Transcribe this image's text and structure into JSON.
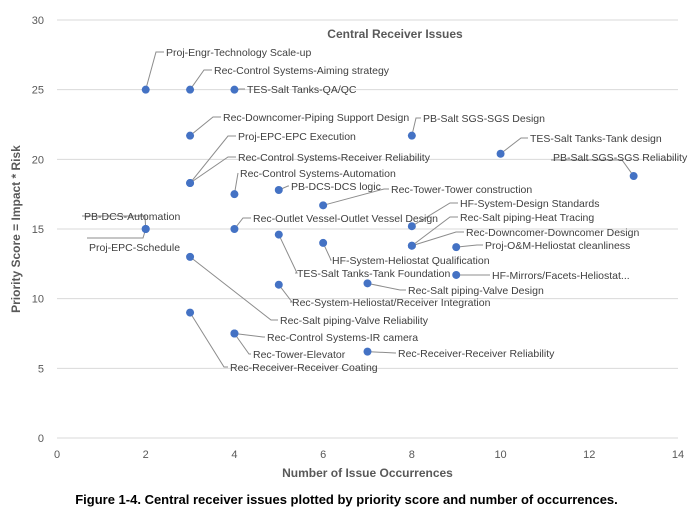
{
  "caption": "Figure 1-4. Central receiver issues plotted by priority score and number of occurrences.",
  "chart_data": {
    "type": "scatter",
    "title": "Central Receiver Issues",
    "xlabel": "Number of Issue Occurrences",
    "ylabel": "Priority Score = Impact * Risk",
    "xlim": [
      0,
      14
    ],
    "ylim": [
      0,
      30
    ],
    "xticks": [
      "0",
      "2",
      "4",
      "6",
      "8",
      "10",
      "12",
      "14"
    ],
    "yticks": [
      "0",
      "5",
      "10",
      "15",
      "20",
      "25",
      "30"
    ],
    "grid": "horizontal",
    "marker_color": "#4472c4",
    "points": [
      {
        "x": 2,
        "y": 25,
        "label": "Proj-Engr-Technology Scale-up"
      },
      {
        "x": 3,
        "y": 25,
        "label": "Rec-Control Systems-Aiming strategy"
      },
      {
        "x": 4,
        "y": 25,
        "label": "TES-Salt Tanks-QA/QC"
      },
      {
        "x": 3,
        "y": 21.7,
        "label": "Rec-Downcomer-Piping Support Design"
      },
      {
        "x": 3,
        "y": 18.3,
        "label": "Proj-EPC-EPC Execution"
      },
      {
        "x": 3,
        "y": 18.3,
        "label": "Rec-Control Systems-Receiver Reliability"
      },
      {
        "x": 4,
        "y": 17.5,
        "label": "Rec-Control Systems-Automation"
      },
      {
        "x": 5,
        "y": 17.8,
        "label": "PB-DCS-DCS logic"
      },
      {
        "x": 6,
        "y": 16.7,
        "label": "Rec-Tower-Tower construction"
      },
      {
        "x": 8,
        "y": 21.7,
        "label": "PB-Salt SGS-SGS Design"
      },
      {
        "x": 10,
        "y": 20.4,
        "label": "TES-Salt Tanks-Tank design"
      },
      {
        "x": 13,
        "y": 18.8,
        "label": "PB-Salt SGS-SGS Reliability"
      },
      {
        "x": 2,
        "y": 15,
        "label": "PB-DCS-Automation"
      },
      {
        "x": 2,
        "y": 15,
        "label": "Proj-EPC-Schedule"
      },
      {
        "x": 4,
        "y": 15,
        "label": "Rec-Outlet Vessel-Outlet Vessel Design"
      },
      {
        "x": 8,
        "y": 15.2,
        "label": "HF-System-Design Standards"
      },
      {
        "x": 8,
        "y": 13.8,
        "label": "Rec-Salt piping-Heat Tracing"
      },
      {
        "x": 8,
        "y": 13.8,
        "label": "Rec-Downcomer-Downcomer Design"
      },
      {
        "x": 9,
        "y": 13.7,
        "label": "Proj-O&M-Heliostat cleanliness"
      },
      {
        "x": 6,
        "y": 14,
        "label": "HF-System-Heliostat Qualification"
      },
      {
        "x": 5,
        "y": 14.6,
        "label": "TES-Salt Tanks-Tank Foundation"
      },
      {
        "x": 9,
        "y": 11.7,
        "label": "HF-Mirrors/Facets-Heliostat..."
      },
      {
        "x": 7,
        "y": 11.1,
        "label": "Rec-Salt piping-Valve Design"
      },
      {
        "x": 5,
        "y": 11,
        "label": "Rec-System-Heliostat/Receiver Integration"
      },
      {
        "x": 3,
        "y": 13,
        "label": "Rec-Salt piping-Valve Reliability"
      },
      {
        "x": 4,
        "y": 7.5,
        "label": "Rec-Control Systems-IR camera"
      },
      {
        "x": 4,
        "y": 7.5,
        "label": "Rec-Tower-Elevator"
      },
      {
        "x": 3,
        "y": 9,
        "label": "Rec-Receiver-Receiver Coating"
      },
      {
        "x": 7,
        "y": 6.2,
        "label": "Rec-Receiver-Receiver Reliability"
      }
    ]
  }
}
